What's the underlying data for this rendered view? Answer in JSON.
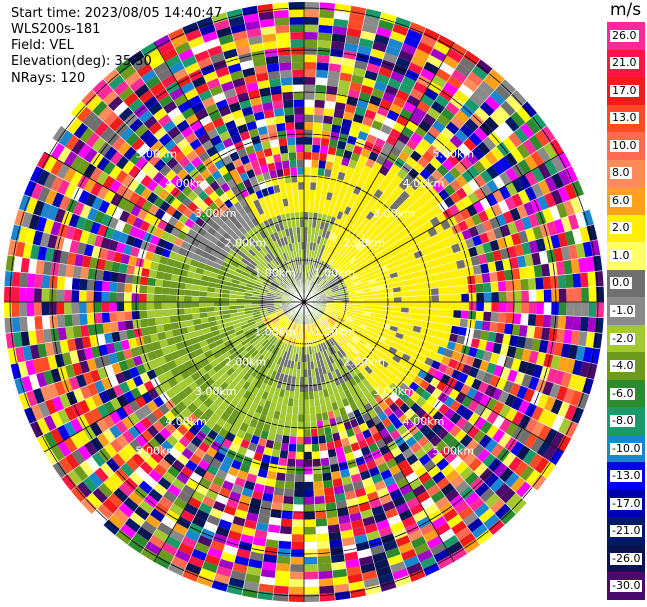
{
  "header": {
    "start_time": "Start time: 2023/08/05 14:40:47",
    "site": "WLS200s-181",
    "field": "Field: VEL",
    "elevation": "Elevation(deg): 35.30",
    "nrays": "NRays: 120"
  },
  "colorbar": {
    "unit": "m/s",
    "levels": [
      {
        "label": "26.0",
        "color": "#ff2a9a"
      },
      {
        "label": "21.0",
        "color": "#ff1444"
      },
      {
        "label": "17.0",
        "color": "#f21a1a"
      },
      {
        "label": "13.0",
        "color": "#ff4a26"
      },
      {
        "label": "10.0",
        "color": "#ff6a50"
      },
      {
        "label": "8.0",
        "color": "#ff8a5a"
      },
      {
        "label": "6.0",
        "color": "#ffa01a"
      },
      {
        "label": "2.0",
        "color": "#ffef00"
      },
      {
        "label": "1.0",
        "color": "#ffff66"
      },
      {
        "label": "0.0",
        "color": "#707070"
      },
      {
        "label": "-1.0",
        "color": "#8a8a8a"
      },
      {
        "label": "-2.0",
        "color": "#a2c832"
      },
      {
        "label": "-4.0",
        "color": "#6e9a1e"
      },
      {
        "label": "-6.0",
        "color": "#2e8a2e"
      },
      {
        "label": "-8.0",
        "color": "#1a9a6a"
      },
      {
        "label": "-10.0",
        "color": "#1a86d0"
      },
      {
        "label": "-13.0",
        "color": "#0000ee"
      },
      {
        "label": "-17.0",
        "color": "#0000aa"
      },
      {
        "label": "-21.0",
        "color": "#001a66"
      },
      {
        "label": "-26.0",
        "color": "#0a1450"
      },
      {
        "label": "-30.0",
        "color": "#4a0a6a"
      }
    ]
  },
  "range_rings": {
    "labels": [
      "1.00km",
      "2.00km",
      "3.00km",
      "4.00km",
      "5.00km"
    ]
  }
}
